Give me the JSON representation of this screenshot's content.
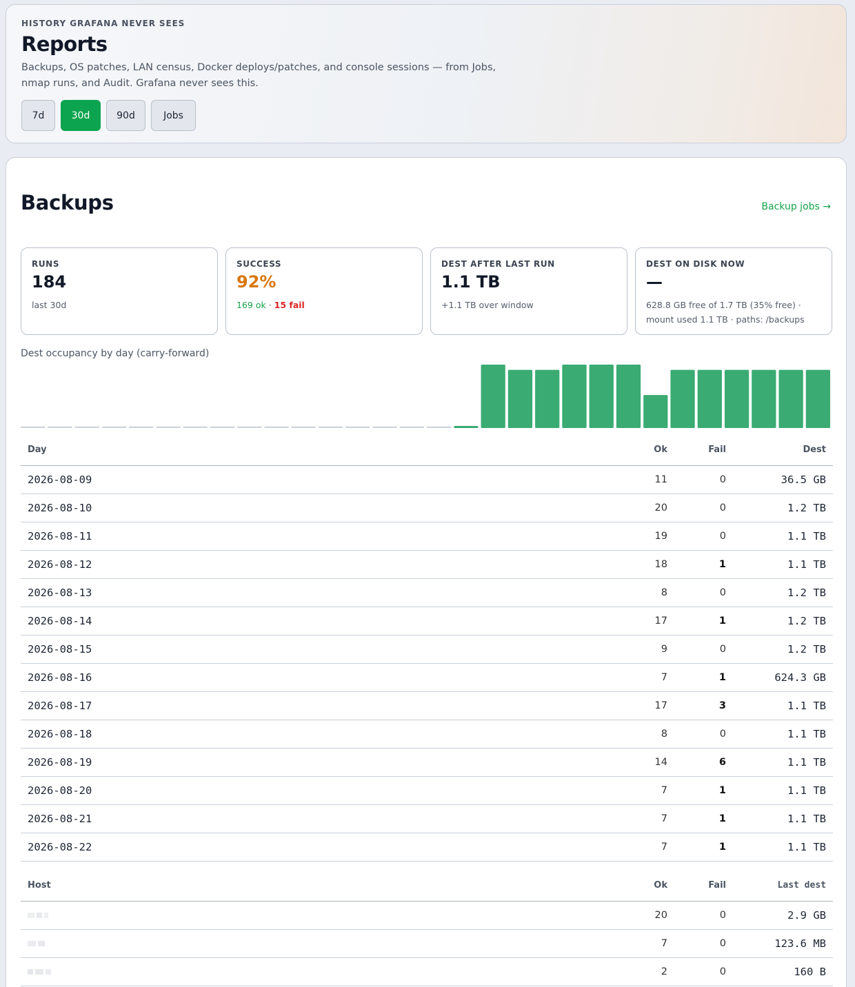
{
  "header": {
    "eyebrow": "HISTORY GRAFANA NEVER SEES",
    "title": "Reports",
    "subtitle": "Backups, OS patches, LAN census, Docker deploys/patches, and console sessions — from Jobs, nmap runs, and Audit. Grafana never sees this.",
    "range_buttons": [
      "7d",
      "30d",
      "90d",
      "Jobs"
    ],
    "selected_range": "30d"
  },
  "backups": {
    "title": "Backups",
    "link_label": "Backup jobs →",
    "cards": {
      "runs": {
        "label": "RUNS",
        "value": "184",
        "sub": "last 30d"
      },
      "success": {
        "label": "SUCCESS",
        "value": "92%",
        "ok_text": "169 ok",
        "sep": " · ",
        "fail_text": "15 fail"
      },
      "dest_after": {
        "label": "DEST AFTER LAST RUN",
        "value": "1.1 TB",
        "sub": "+1.1 TB over window"
      },
      "dest_now": {
        "label": "DEST ON DISK NOW",
        "value": "—",
        "sub": "628.8 GB free of 1.7 TB (35% free) · mount used 1.1 TB · paths: /backups"
      }
    },
    "chart_caption": "Dest occupancy by day (carry-forward)",
    "day_table": {
      "headers": [
        "Day",
        "Ok",
        "Fail",
        "Dest"
      ],
      "rows": [
        [
          "2026-08-09",
          "11",
          "0",
          "36.5 GB"
        ],
        [
          "2026-08-10",
          "20",
          "0",
          "1.2 TB"
        ],
        [
          "2026-08-11",
          "19",
          "0",
          "1.1 TB"
        ],
        [
          "2026-08-12",
          "18",
          "1",
          "1.1 TB"
        ],
        [
          "2026-08-13",
          "8",
          "0",
          "1.2 TB"
        ],
        [
          "2026-08-14",
          "17",
          "1",
          "1.2 TB"
        ],
        [
          "2026-08-15",
          "9",
          "0",
          "1.2 TB"
        ],
        [
          "2026-08-16",
          "7",
          "1",
          "624.3 GB"
        ],
        [
          "2026-08-17",
          "17",
          "3",
          "1.1 TB"
        ],
        [
          "2026-08-18",
          "8",
          "0",
          "1.1 TB"
        ],
        [
          "2026-08-19",
          "14",
          "6",
          "1.1 TB"
        ],
        [
          "2026-08-20",
          "7",
          "1",
          "1.1 TB"
        ],
        [
          "2026-08-21",
          "7",
          "1",
          "1.1 TB"
        ],
        [
          "2026-08-22",
          "7",
          "1",
          "1.1 TB"
        ]
      ]
    },
    "host_table": {
      "headers": [
        "Host",
        "Ok",
        "Fail",
        "Last dest"
      ],
      "rows": [
        [
          "",
          "20",
          "0",
          "2.9 GB"
        ],
        [
          "",
          "7",
          "0",
          "123.6 MB"
        ],
        [
          "",
          "2",
          "0",
          "160 B"
        ]
      ]
    }
  },
  "chart_data": {
    "type": "bar",
    "bar_color": "#3aab73",
    "empty_color": "#b9c0cb",
    "ylabel": "",
    "xlabel": "",
    "unit": "TB",
    "values": [
      0,
      0,
      0,
      0,
      0,
      0,
      0,
      0,
      0,
      0,
      0,
      0,
      0,
      0,
      0,
      0,
      0.0365,
      1.2,
      1.1,
      1.1,
      1.2,
      1.2,
      1.2,
      0.6243,
      1.1,
      1.1,
      1.1,
      1.1,
      1.1,
      1.1
    ]
  }
}
